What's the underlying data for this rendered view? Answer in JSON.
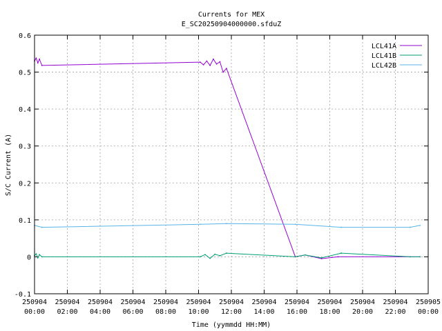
{
  "chart_data": {
    "type": "line",
    "title": "Currents for MEX",
    "subtitle": "E_SC20250904000000.sfduZ",
    "xlabel": "Time (yymmdd HH:MM)",
    "ylabel": "S/C Current (A)",
    "xlim_hours": [
      0,
      24
    ],
    "ylim": [
      -0.1,
      0.6
    ],
    "grid": true,
    "legend_position": "top-right",
    "y_ticks": [
      {
        "value": -0.1,
        "label": "-0.1"
      },
      {
        "value": 0,
        "label": "0"
      },
      {
        "value": 0.1,
        "label": "0.1"
      },
      {
        "value": 0.2,
        "label": "0.2"
      },
      {
        "value": 0.3,
        "label": "0.3"
      },
      {
        "value": 0.4,
        "label": "0.4"
      },
      {
        "value": 0.5,
        "label": "0.5"
      },
      {
        "value": 0.6,
        "label": "0.6"
      }
    ],
    "x_ticks": [
      {
        "hour": 0,
        "date": "250904",
        "time": "00:00"
      },
      {
        "hour": 2,
        "date": "250904",
        "time": "02:00"
      },
      {
        "hour": 4,
        "date": "250904",
        "time": "04:00"
      },
      {
        "hour": 6,
        "date": "250904",
        "time": "06:00"
      },
      {
        "hour": 8,
        "date": "250904",
        "time": "08:00"
      },
      {
        "hour": 10,
        "date": "250904",
        "time": "10:00"
      },
      {
        "hour": 12,
        "date": "250904",
        "time": "12:00"
      },
      {
        "hour": 14,
        "date": "250904",
        "time": "14:00"
      },
      {
        "hour": 16,
        "date": "250904",
        "time": "16:00"
      },
      {
        "hour": 18,
        "date": "250904",
        "time": "18:00"
      },
      {
        "hour": 20,
        "date": "250904",
        "time": "20:00"
      },
      {
        "hour": 22,
        "date": "250904",
        "time": "22:00"
      },
      {
        "hour": 24,
        "date": "250905",
        "time": "00:00"
      }
    ],
    "series": [
      {
        "name": "LCL41A",
        "color": "#9400d3",
        "x_hours": [
          0.0,
          0.1,
          0.2,
          0.3,
          0.45,
          10.1,
          10.3,
          10.5,
          10.7,
          10.9,
          11.1,
          11.3,
          11.5,
          11.7,
          15.9,
          16.5,
          17.5,
          18.5,
          22.9,
          23.5
        ],
        "y": [
          0.53,
          0.538,
          0.525,
          0.535,
          0.518,
          0.527,
          0.52,
          0.53,
          0.518,
          0.535,
          0.522,
          0.528,
          0.5,
          0.51,
          0.0,
          0.005,
          -0.005,
          0.0,
          0.0,
          0.0
        ]
      },
      {
        "name": "LCL41B",
        "color": "#009e73",
        "x_hours": [
          0.0,
          0.1,
          0.2,
          0.3,
          0.45,
          10.1,
          10.4,
          10.7,
          11.0,
          11.3,
          11.7,
          15.9,
          16.5,
          17.5,
          18.7,
          22.9,
          23.5
        ],
        "y": [
          0.003,
          0.008,
          -0.003,
          0.006,
          0.0,
          0.0,
          0.006,
          -0.004,
          0.007,
          0.003,
          0.01,
          0.0,
          0.005,
          -0.003,
          0.01,
          0.0,
          0.0
        ]
      },
      {
        "name": "LCL42B",
        "color": "#56b4e9",
        "x_hours": [
          0.0,
          0.45,
          10.1,
          11.7,
          15.9,
          18.7,
          22.9,
          23.5
        ],
        "y": [
          0.085,
          0.08,
          0.088,
          0.09,
          0.088,
          0.08,
          0.08,
          0.085
        ]
      }
    ]
  }
}
